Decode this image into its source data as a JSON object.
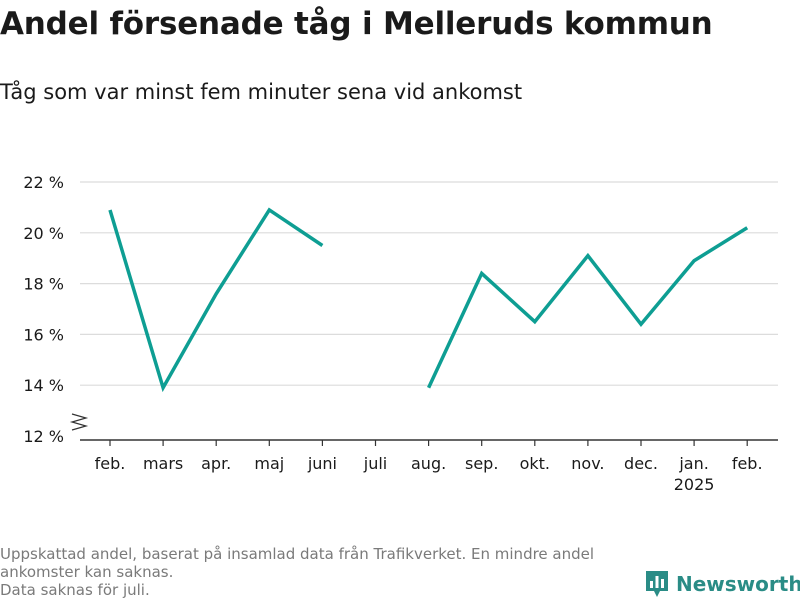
{
  "chart_data": {
    "type": "line",
    "title": "Andel försenade tåg i Melleruds kommun",
    "subtitle": "Tåg som var minst fem minuter sena vid ankomst",
    "categories": [
      "feb.",
      "mars",
      "apr.",
      "maj",
      "juni",
      "juli",
      "aug.",
      "sep.",
      "okt.",
      "nov.",
      "dec.",
      "jan.",
      "feb."
    ],
    "category_sublabels": [
      "",
      "",
      "",
      "",
      "",
      "",
      "",
      "",
      "",
      "",
      "",
      "2025",
      ""
    ],
    "series": [
      {
        "values": [
          20.9,
          13.9,
          17.6,
          20.9,
          19.5,
          null,
          13.9,
          18.4,
          16.5,
          19.1,
          16.4,
          18.9,
          20.2
        ]
      }
    ],
    "y_ticks": [
      12,
      14,
      16,
      18,
      20,
      22
    ],
    "y_tick_labels": [
      "12 %",
      "14 %",
      "16 %",
      "18 %",
      "20 %",
      "22 %"
    ],
    "ylim": [
      12,
      22
    ],
    "grid": true,
    "axis_break": true,
    "line_color": "#0e9e93"
  },
  "footnote": {
    "line1": "Uppskattad andel, baserat på insamlad data från Trafikverket. En mindre andel",
    "line2": "ankomster kan saknas.",
    "line3": "Data saknas för juli."
  },
  "brand": {
    "name": "Newsworthy",
    "color": "#2a8c86",
    "icon": "bar-chart-logo-icon"
  }
}
